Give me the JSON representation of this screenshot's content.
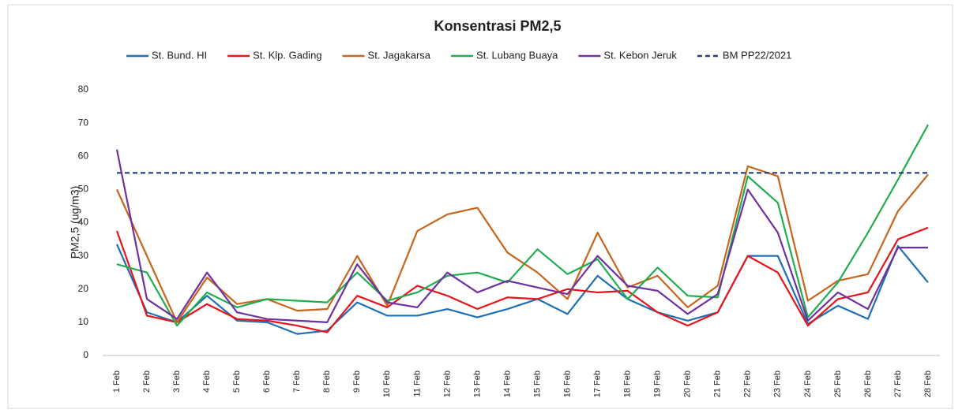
{
  "chart_data": {
    "type": "line",
    "title": "Konsentrasi PM2,5",
    "y_label": "PM2,5 (ug/m3)",
    "categories": [
      "1 Feb",
      "2 Feb",
      "3 Feb",
      "4 Feb",
      "5 Feb",
      "6 Feb",
      "7 Feb",
      "8 Feb",
      "9 Feb",
      "10 Feb",
      "11 Feb",
      "12 Feb",
      "13 Feb",
      "14 Feb",
      "15 Feb",
      "16 Feb",
      "17 Feb",
      "18 Feb",
      "19 Feb",
      "20 Feb",
      "21 Feb",
      "22 Feb",
      "23 Feb",
      "24 Feb",
      "25 Feb",
      "26 Feb",
      "27 Feb",
      "28 Feb"
    ],
    "ylim": [
      0,
      80
    ],
    "yticks": [
      0,
      10,
      20,
      30,
      40,
      50,
      60,
      70,
      80
    ],
    "grid": false,
    "legend": "top",
    "series": [
      {
        "name": "St. Bund. HI",
        "color": "#1f6fb5",
        "values": [
          33.5,
          13,
          10,
          18,
          10.5,
          10,
          6.5,
          7.5,
          16,
          12,
          12,
          14,
          11.5,
          14,
          17,
          12.5,
          24,
          17,
          13,
          10.5,
          13,
          30,
          30,
          9.5,
          15,
          11,
          33,
          22
        ]
      },
      {
        "name": "St. Klp. Gading",
        "color": "#e8141b",
        "values": [
          37.5,
          12,
          10,
          15.5,
          11,
          10.5,
          9,
          7,
          18,
          14.5,
          21,
          18,
          14,
          17.5,
          17,
          20,
          19,
          19.5,
          13,
          9,
          13,
          30,
          25,
          9,
          17,
          19,
          35,
          38.5
        ]
      },
      {
        "name": "St. Jagakarsa",
        "color": "#c8651b",
        "values": [
          50,
          30,
          10,
          23.5,
          15.5,
          17,
          13.5,
          14,
          30,
          15,
          37.5,
          42.5,
          44.5,
          31,
          25,
          17,
          37,
          20.5,
          24,
          14.5,
          21,
          57,
          54,
          16.5,
          22.5,
          24.5,
          43.5,
          54.5
        ]
      },
      {
        "name": "St. Lubang Buaya",
        "color": "#1fae4f",
        "values": [
          27.5,
          25,
          9,
          19,
          14.5,
          17,
          16.5,
          16,
          25,
          16.5,
          19,
          24,
          25,
          22,
          32,
          24.5,
          29,
          17,
          26.5,
          18,
          17.5,
          54,
          46,
          11.5,
          22,
          37,
          53,
          69.5
        ]
      },
      {
        "name": "St. Kebon Jeruk",
        "color": "#7030a0",
        "values": [
          62,
          17,
          11,
          25,
          13,
          11,
          10.5,
          10,
          27.5,
          16,
          14.5,
          25,
          19,
          22.5,
          20.5,
          18.5,
          30,
          21,
          19.5,
          12.5,
          18.5,
          50,
          37,
          10.5,
          19,
          14,
          32.5,
          32.5
        ]
      },
      {
        "name": "BM PP22/2021",
        "color": "#1f3f7a",
        "dash": true,
        "values": [
          55,
          55,
          55,
          55,
          55,
          55,
          55,
          55,
          55,
          55,
          55,
          55,
          55,
          55,
          55,
          55,
          55,
          55,
          55,
          55,
          55,
          55,
          55,
          55,
          55,
          55,
          55,
          55
        ]
      }
    ]
  }
}
